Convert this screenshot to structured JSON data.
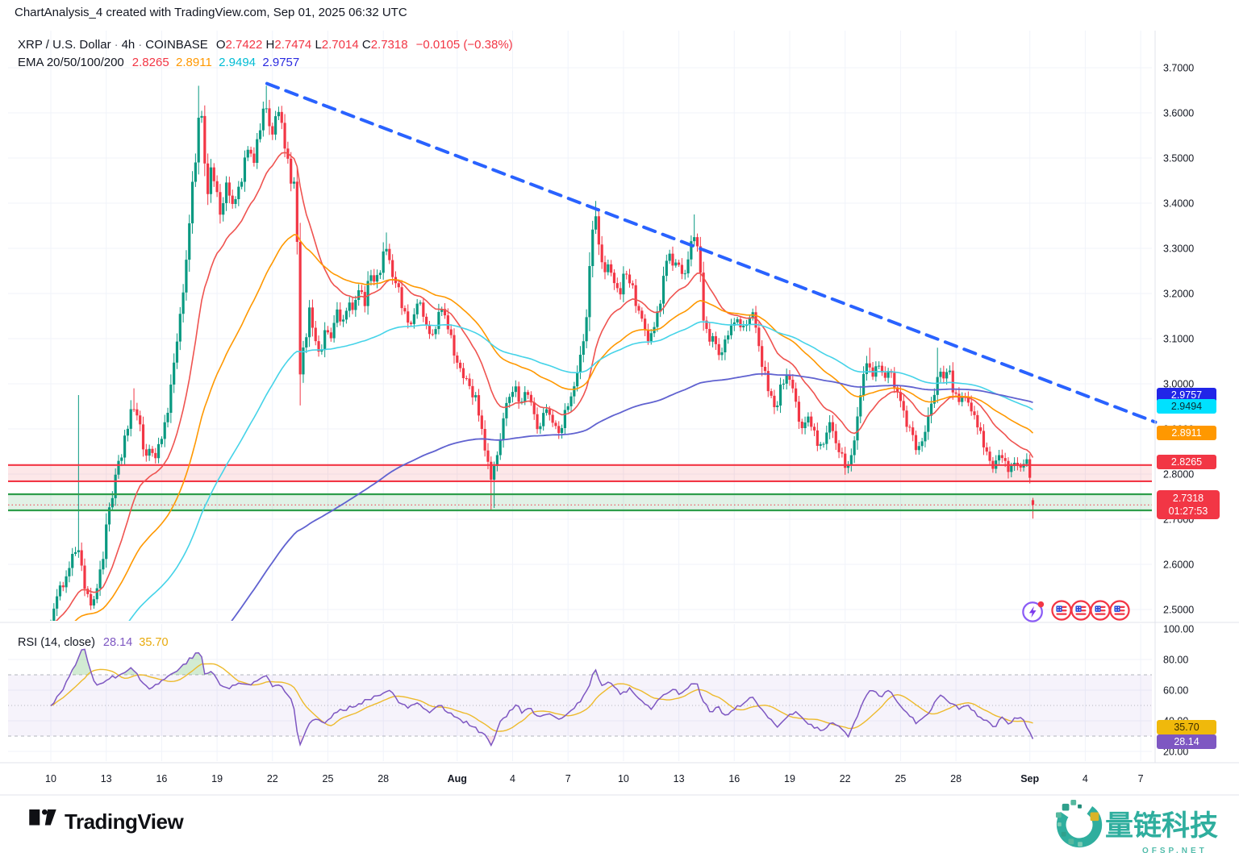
{
  "header": {
    "title": "ChartAnalysis_4 created with TradingView.com, Sep 01, 2025 06:32 UTC"
  },
  "legend": {
    "symbol": "XRP / U.S. Dollar",
    "sep": "·",
    "interval": "4h",
    "exchange": "COINBASE",
    "o_label": "O",
    "o": "2.7422",
    "h_label": "H",
    "h": "2.7474",
    "l_label": "L",
    "l": "2.7014",
    "c_label": "C",
    "c": "2.7318",
    "change": "−0.0105 (−0.38%)",
    "ema_label": "EMA 20/50/100/200",
    "ema20": "2.8265",
    "ema50": "2.8911",
    "ema100": "2.9494",
    "ema200": "2.9757"
  },
  "rsi_legend": {
    "label": "RSI (14, close)",
    "value": "28.14",
    "ma": "35.70"
  },
  "price_axis": {
    "ticks": [
      "3.7000",
      "3.6000",
      "3.5000",
      "3.4000",
      "3.3000",
      "3.2000",
      "3.1000",
      "3.0000",
      "2.9000",
      "2.8000",
      "2.7000",
      "2.6000",
      "2.5000"
    ],
    "last": {
      "price": "2.7318",
      "countdown": "01:27:53"
    }
  },
  "rsi_axis": {
    "ticks": [
      "100.00",
      "80.00",
      "60.00",
      "40.00",
      "20.00"
    ]
  },
  "time_axis": {
    "labels": [
      {
        "t": "10",
        "d": 0
      },
      {
        "t": "13",
        "d": 3
      },
      {
        "t": "16",
        "d": 6
      },
      {
        "t": "19",
        "d": 9
      },
      {
        "t": "22",
        "d": 12
      },
      {
        "t": "25",
        "d": 15
      },
      {
        "t": "28",
        "d": 18
      },
      {
        "t": "Aug",
        "d": 22,
        "b": true
      },
      {
        "t": "4",
        "d": 25
      },
      {
        "t": "7",
        "d": 28
      },
      {
        "t": "10",
        "d": 31
      },
      {
        "t": "13",
        "d": 34
      },
      {
        "t": "16",
        "d": 37
      },
      {
        "t": "19",
        "d": 40
      },
      {
        "t": "22",
        "d": 43
      },
      {
        "t": "25",
        "d": 46
      },
      {
        "t": "28",
        "d": 49
      },
      {
        "t": "Sep",
        "d": 53,
        "b": true
      },
      {
        "t": "4",
        "d": 56
      },
      {
        "t": "7",
        "d": 59
      }
    ]
  },
  "footer": {
    "brand": "TradingView"
  },
  "watermark": {
    "text": "量链科技",
    "sub": "QFSP.NET"
  },
  "chart_data": {
    "type": "candlestick",
    "title": "XRP / U.S. Dollar · 4h · COINBASE",
    "x_axis": {
      "start": "Jul 10 2025",
      "end": "Sep 7 2025",
      "unit": "days",
      "bar_interval_hours": 4
    },
    "ylim": [
      2.45,
      3.72
    ],
    "grid": true,
    "last_candle": {
      "o": 2.7422,
      "h": 2.7474,
      "l": 2.7014,
      "c": 2.7318,
      "t": 53.167
    },
    "change": -0.0105,
    "change_pct": -0.38,
    "emas": {
      "p20": 2.8265,
      "p50": 2.8911,
      "p100": 2.9494,
      "p200": 2.9757
    },
    "rsi": {
      "period": 14,
      "source": "close",
      "value": 28.14,
      "ma": 35.7,
      "levels": [
        70,
        50,
        30
      ],
      "range": [
        0,
        100
      ]
    },
    "levels": {
      "resistance_zone": [
        2.784,
        2.82
      ],
      "support_zone": [
        2.7196,
        2.7554
      ],
      "current_price": 2.7318
    },
    "trendline": {
      "type": "descending-dashed",
      "from": {
        "t": 11.7,
        "price": 3.665
      },
      "to": {
        "t": 59.8,
        "price": 2.915
      }
    },
    "price_path_anchors": [
      [
        0,
        2.475
      ],
      [
        0.35,
        2.52
      ],
      [
        0.8,
        2.58
      ],
      [
        1.2,
        2.62
      ],
      [
        1.5,
        2.64
      ],
      [
        1.8,
        2.56
      ],
      [
        2.1,
        2.5
      ],
      [
        2.5,
        2.55
      ],
      [
        2.8,
        2.62
      ],
      [
        3.2,
        2.72
      ],
      [
        3.6,
        2.8
      ],
      [
        4.0,
        2.88
      ],
      [
        4.4,
        2.955
      ],
      [
        4.8,
        2.9
      ],
      [
        5.1,
        2.84
      ],
      [
        5.4,
        2.86
      ],
      [
        5.7,
        2.83
      ],
      [
        6.0,
        2.88
      ],
      [
        6.4,
        2.97
      ],
      [
        6.8,
        3.06
      ],
      [
        7.1,
        3.19
      ],
      [
        7.4,
        3.32
      ],
      [
        7.7,
        3.45
      ],
      [
        8.0,
        3.58
      ],
      [
        8.15,
        3.62
      ],
      [
        8.3,
        3.5
      ],
      [
        8.5,
        3.42
      ],
      [
        8.7,
        3.49
      ],
      [
        9.0,
        3.415
      ],
      [
        9.2,
        3.37
      ],
      [
        9.5,
        3.44
      ],
      [
        9.8,
        3.4
      ],
      [
        10.1,
        3.42
      ],
      [
        10.4,
        3.47
      ],
      [
        10.7,
        3.52
      ],
      [
        11.0,
        3.49
      ],
      [
        11.3,
        3.55
      ],
      [
        11.55,
        3.61
      ],
      [
        11.7,
        3.62
      ],
      [
        11.9,
        3.53
      ],
      [
        12.1,
        3.57
      ],
      [
        12.35,
        3.6
      ],
      [
        12.6,
        3.56
      ],
      [
        12.8,
        3.5
      ],
      [
        13.0,
        3.45
      ],
      [
        13.3,
        3.46
      ],
      [
        13.42,
        2.99
      ],
      [
        13.7,
        3.07
      ],
      [
        14.0,
        3.16
      ],
      [
        14.3,
        3.11
      ],
      [
        14.6,
        3.06
      ],
      [
        14.9,
        3.12
      ],
      [
        15.2,
        3.1
      ],
      [
        15.5,
        3.16
      ],
      [
        15.8,
        3.13
      ],
      [
        16.1,
        3.18
      ],
      [
        16.4,
        3.16
      ],
      [
        16.7,
        3.21
      ],
      [
        17.0,
        3.18
      ],
      [
        17.3,
        3.24
      ],
      [
        17.6,
        3.22
      ],
      [
        17.9,
        3.27
      ],
      [
        18.2,
        3.305
      ],
      [
        18.5,
        3.25
      ],
      [
        18.8,
        3.21
      ],
      [
        19.1,
        3.16
      ],
      [
        19.4,
        3.13
      ],
      [
        19.7,
        3.16
      ],
      [
        20.0,
        3.18
      ],
      [
        20.3,
        3.13
      ],
      [
        20.6,
        3.1
      ],
      [
        20.9,
        3.14
      ],
      [
        21.2,
        3.17
      ],
      [
        21.5,
        3.12
      ],
      [
        21.8,
        3.07
      ],
      [
        22.1,
        3.04
      ],
      [
        22.4,
        3.015
      ],
      [
        22.7,
        2.99
      ],
      [
        23.0,
        2.965
      ],
      [
        23.3,
        2.92
      ],
      [
        23.6,
        2.83
      ],
      [
        23.9,
        2.77
      ],
      [
        24.2,
        2.86
      ],
      [
        24.5,
        2.93
      ],
      [
        24.8,
        2.97
      ],
      [
        25.1,
        3.0
      ],
      [
        25.4,
        2.955
      ],
      [
        25.7,
        2.985
      ],
      [
        26.0,
        2.955
      ],
      [
        26.3,
        2.9
      ],
      [
        26.6,
        2.92
      ],
      [
        26.9,
        2.945
      ],
      [
        27.2,
        2.92
      ],
      [
        27.5,
        2.895
      ],
      [
        27.8,
        2.93
      ],
      [
        28.1,
        2.96
      ],
      [
        28.4,
        3.0
      ],
      [
        28.7,
        3.06
      ],
      [
        29.0,
        3.16
      ],
      [
        29.25,
        3.3
      ],
      [
        29.45,
        3.38
      ],
      [
        29.65,
        3.31
      ],
      [
        29.9,
        3.24
      ],
      [
        30.2,
        3.27
      ],
      [
        30.5,
        3.23
      ],
      [
        30.8,
        3.2
      ],
      [
        31.1,
        3.25
      ],
      [
        31.4,
        3.22
      ],
      [
        31.7,
        3.18
      ],
      [
        32.0,
        3.14
      ],
      [
        32.3,
        3.09
      ],
      [
        32.6,
        3.12
      ],
      [
        32.9,
        3.17
      ],
      [
        33.2,
        3.24
      ],
      [
        33.45,
        3.29
      ],
      [
        33.7,
        3.25
      ],
      [
        33.95,
        3.28
      ],
      [
        34.2,
        3.24
      ],
      [
        34.45,
        3.27
      ],
      [
        34.7,
        3.31
      ],
      [
        34.9,
        3.34
      ],
      [
        35.1,
        3.28
      ],
      [
        35.35,
        3.15
      ],
      [
        35.6,
        3.08
      ],
      [
        35.9,
        3.12
      ],
      [
        36.2,
        3.06
      ],
      [
        36.5,
        3.09
      ],
      [
        36.8,
        3.12
      ],
      [
        37.1,
        3.15
      ],
      [
        37.4,
        3.11
      ],
      [
        37.7,
        3.14
      ],
      [
        38.0,
        3.16
      ],
      [
        38.3,
        3.09
      ],
      [
        38.6,
        3.03
      ],
      [
        38.9,
        2.97
      ],
      [
        39.2,
        2.945
      ],
      [
        39.5,
        2.985
      ],
      [
        39.8,
        3.02
      ],
      [
        40.1,
        2.985
      ],
      [
        40.4,
        2.94
      ],
      [
        40.7,
        2.9
      ],
      [
        41.0,
        2.925
      ],
      [
        41.3,
        2.89
      ],
      [
        41.6,
        2.855
      ],
      [
        41.9,
        2.88
      ],
      [
        42.2,
        2.915
      ],
      [
        42.5,
        2.88
      ],
      [
        42.8,
        2.84
      ],
      [
        43.1,
        2.805
      ],
      [
        43.4,
        2.855
      ],
      [
        43.7,
        2.945
      ],
      [
        44.0,
        3.01
      ],
      [
        44.25,
        3.05
      ],
      [
        44.5,
        3.02
      ],
      [
        44.8,
        3.04
      ],
      [
        45.1,
        3.01
      ],
      [
        45.4,
        3.035
      ],
      [
        45.7,
        2.99
      ],
      [
        46.0,
        2.965
      ],
      [
        46.3,
        2.92
      ],
      [
        46.6,
        2.885
      ],
      [
        46.9,
        2.85
      ],
      [
        47.2,
        2.875
      ],
      [
        47.5,
        2.92
      ],
      [
        47.8,
        2.985
      ],
      [
        48.05,
        3.035
      ],
      [
        48.3,
        3.01
      ],
      [
        48.6,
        3.03
      ],
      [
        48.9,
        2.985
      ],
      [
        49.2,
        2.955
      ],
      [
        49.5,
        2.975
      ],
      [
        49.8,
        2.94
      ],
      [
        50.1,
        2.91
      ],
      [
        50.4,
        2.885
      ],
      [
        50.7,
        2.845
      ],
      [
        51.0,
        2.815
      ],
      [
        51.3,
        2.845
      ],
      [
        51.6,
        2.825
      ],
      [
        51.9,
        2.8
      ],
      [
        52.2,
        2.835
      ],
      [
        52.5,
        2.815
      ],
      [
        52.8,
        2.84
      ],
      [
        53.0,
        2.79
      ],
      [
        53.08,
        2.75
      ],
      [
        53.167,
        2.7318
      ]
    ],
    "wick_spikes": [
      {
        "t": 1.5,
        "high": 2.975
      },
      {
        "t": 4.45,
        "high": 2.99
      },
      {
        "t": 8.05,
        "high": 3.66
      },
      {
        "t": 11.7,
        "high": 3.66
      },
      {
        "t": 13.5,
        "low": 2.952
      },
      {
        "t": 18.2,
        "high": 3.335
      },
      {
        "t": 23.75,
        "low": 2.718
      },
      {
        "t": 24.05,
        "low": 2.725
      },
      {
        "t": 29.45,
        "high": 3.405
      },
      {
        "t": 34.9,
        "high": 3.375
      },
      {
        "t": 44.25,
        "high": 3.08
      },
      {
        "t": 48.05,
        "high": 3.08
      },
      {
        "t": 53.167,
        "low": 2.7014
      }
    ],
    "rsi_path_anchors": [
      [
        0,
        50
      ],
      [
        0.5,
        58
      ],
      [
        1.0,
        68
      ],
      [
        1.5,
        82
      ],
      [
        1.8,
        88
      ],
      [
        2.1,
        74
      ],
      [
        2.4,
        64
      ],
      [
        2.9,
        66
      ],
      [
        3.5,
        69
      ],
      [
        4.1,
        73
      ],
      [
        4.4,
        76
      ],
      [
        4.8,
        67
      ],
      [
        5.3,
        61
      ],
      [
        5.9,
        65
      ],
      [
        6.6,
        71
      ],
      [
        7.2,
        77
      ],
      [
        7.8,
        83
      ],
      [
        8.1,
        85
      ],
      [
        8.35,
        70
      ],
      [
        8.7,
        73
      ],
      [
        9.1,
        64
      ],
      [
        9.6,
        61
      ],
      [
        10.2,
        65
      ],
      [
        10.8,
        63
      ],
      [
        11.4,
        68
      ],
      [
        11.7,
        70
      ],
      [
        12.0,
        62
      ],
      [
        12.4,
        64
      ],
      [
        12.8,
        58
      ],
      [
        13.1,
        54
      ],
      [
        13.45,
        23
      ],
      [
        13.8,
        34
      ],
      [
        14.2,
        42
      ],
      [
        14.8,
        38
      ],
      [
        15.4,
        45
      ],
      [
        16.0,
        48
      ],
      [
        16.6,
        51
      ],
      [
        17.2,
        54
      ],
      [
        17.9,
        58
      ],
      [
        18.3,
        61
      ],
      [
        18.7,
        54
      ],
      [
        19.3,
        48
      ],
      [
        19.9,
        52
      ],
      [
        20.5,
        46
      ],
      [
        21.1,
        50
      ],
      [
        21.7,
        44
      ],
      [
        22.3,
        40
      ],
      [
        22.9,
        36
      ],
      [
        23.5,
        30
      ],
      [
        23.85,
        24
      ],
      [
        24.3,
        38
      ],
      [
        24.8,
        46
      ],
      [
        25.2,
        51
      ],
      [
        25.5,
        45
      ],
      [
        25.9,
        49
      ],
      [
        26.4,
        41
      ],
      [
        27.0,
        45
      ],
      [
        27.6,
        40
      ],
      [
        28.2,
        47
      ],
      [
        28.8,
        55
      ],
      [
        29.2,
        65
      ],
      [
        29.45,
        74
      ],
      [
        29.8,
        63
      ],
      [
        30.3,
        65
      ],
      [
        30.9,
        57
      ],
      [
        31.4,
        61
      ],
      [
        32.0,
        53
      ],
      [
        32.5,
        48
      ],
      [
        33.1,
        56
      ],
      [
        33.6,
        61
      ],
      [
        34.0,
        58
      ],
      [
        34.5,
        62
      ],
      [
        34.9,
        66
      ],
      [
        35.3,
        54
      ],
      [
        35.7,
        45
      ],
      [
        36.1,
        49
      ],
      [
        36.5,
        43
      ],
      [
        37.0,
        47
      ],
      [
        37.5,
        52
      ],
      [
        38.0,
        55
      ],
      [
        38.4,
        48
      ],
      [
        38.9,
        41
      ],
      [
        39.3,
        36
      ],
      [
        39.8,
        43
      ],
      [
        40.3,
        46
      ],
      [
        40.8,
        40
      ],
      [
        41.3,
        36
      ],
      [
        41.8,
        33
      ],
      [
        42.3,
        40
      ],
      [
        42.8,
        35
      ],
      [
        43.2,
        30
      ],
      [
        43.6,
        42
      ],
      [
        44.1,
        55
      ],
      [
        44.4,
        60
      ],
      [
        44.9,
        56
      ],
      [
        45.4,
        59
      ],
      [
        45.9,
        51
      ],
      [
        46.4,
        45
      ],
      [
        46.9,
        38
      ],
      [
        47.4,
        44
      ],
      [
        47.9,
        52
      ],
      [
        48.2,
        57
      ],
      [
        48.6,
        53
      ],
      [
        49.1,
        48
      ],
      [
        49.6,
        51
      ],
      [
        50.1,
        44
      ],
      [
        50.6,
        40
      ],
      [
        51.1,
        36
      ],
      [
        51.5,
        42
      ],
      [
        51.9,
        38
      ],
      [
        52.3,
        43
      ],
      [
        52.7,
        39
      ],
      [
        53.0,
        33
      ],
      [
        53.167,
        28.14
      ]
    ],
    "colors": {
      "up": "#089981",
      "down": "#f23645",
      "ema20": "#ef5350",
      "ema50": "#ff9800",
      "ema100": "#45d3e8",
      "ema200": "#6062d0",
      "trendline": "#2962ff",
      "resistance_line": "#f23645",
      "resistance_fill": "rgba(242,54,69,0.12)",
      "support_line": "#2e9e4b",
      "support_fill": "rgba(46,158,75,0.14)",
      "rsi_line": "#7e57c2",
      "rsi_ma_line": "#edba2c",
      "rsi_band_fill": "rgba(126,87,194,0.07)",
      "overbought_fill": "rgba(76,175,80,0.25)",
      "oversold_fill": "rgba(242,54,69,0.14)",
      "grid": "#f0f3fa",
      "axis_border": "#e0e3eb",
      "text": "#131722"
    }
  }
}
